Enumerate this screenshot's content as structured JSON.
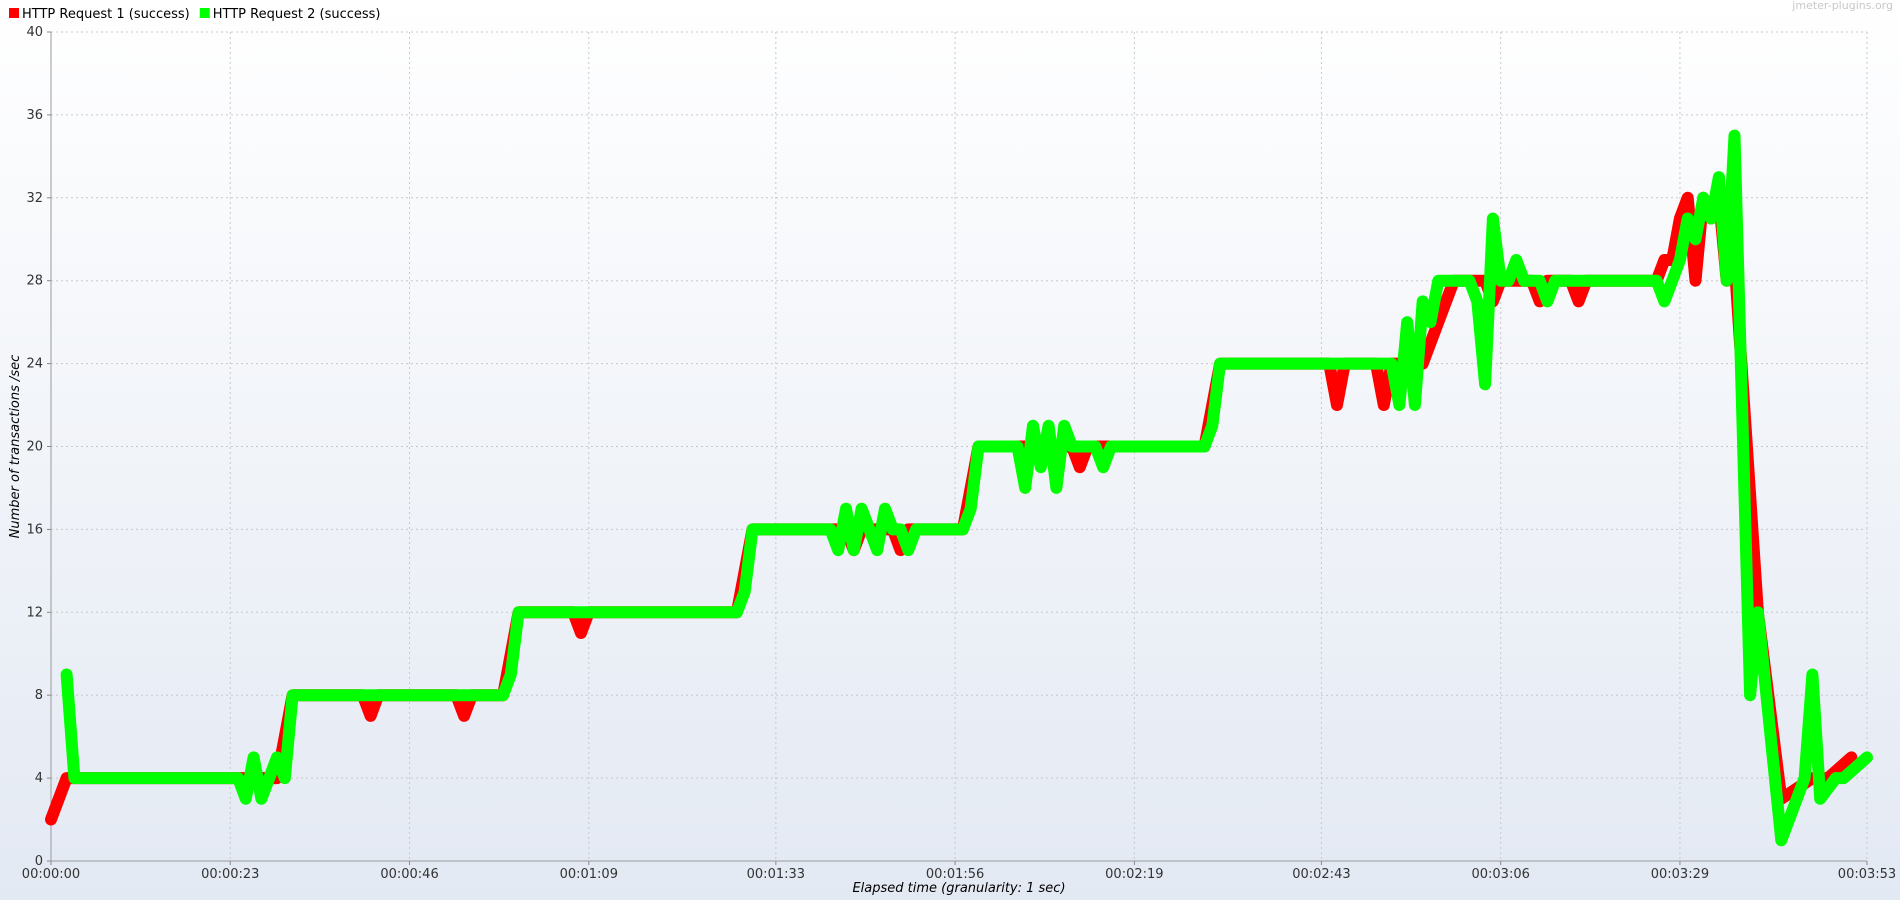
{
  "watermark": "jmeter-plugins.org",
  "chart_data": {
    "type": "line",
    "xlabel": "Elapsed time (granularity: 1 sec)",
    "ylabel": "Number of transactions /sec",
    "ylim": [
      0,
      40
    ],
    "xlim": [
      0,
      233
    ],
    "y_ticks": [
      0,
      4,
      8,
      12,
      16,
      20,
      24,
      28,
      32,
      36,
      40
    ],
    "x_ticks": [
      {
        "t": 0,
        "label": "00:00:00"
      },
      {
        "t": 23,
        "label": "00:00:23"
      },
      {
        "t": 46,
        "label": "00:00:46"
      },
      {
        "t": 69,
        "label": "00:01:09"
      },
      {
        "t": 93,
        "label": "00:01:33"
      },
      {
        "t": 116,
        "label": "00:01:56"
      },
      {
        "t": 139,
        "label": "00:02:19"
      },
      {
        "t": 163,
        "label": "00:02:43"
      },
      {
        "t": 186,
        "label": "00:03:06"
      },
      {
        "t": 209,
        "label": "00:03:29"
      },
      {
        "t": 233,
        "label": "00:03:53"
      }
    ],
    "grid": true,
    "legend_position": "top-left",
    "series": [
      {
        "name": "HTTP Request 1 (success)",
        "color": "#ff0000",
        "points": [
          [
            0,
            2
          ],
          [
            2,
            4
          ],
          [
            29,
            4
          ],
          [
            31,
            8
          ],
          [
            40,
            8
          ],
          [
            41,
            7
          ],
          [
            42,
            8
          ],
          [
            52,
            8
          ],
          [
            53,
            7
          ],
          [
            54,
            8
          ],
          [
            58,
            8
          ],
          [
            60,
            12
          ],
          [
            67,
            12
          ],
          [
            68,
            11
          ],
          [
            69,
            12
          ],
          [
            88,
            12
          ],
          [
            90,
            16
          ],
          [
            102,
            16
          ],
          [
            103,
            15
          ],
          [
            104,
            16
          ],
          [
            108,
            16
          ],
          [
            109,
            15
          ],
          [
            110,
            16
          ],
          [
            117,
            16
          ],
          [
            119,
            20
          ],
          [
            131,
            20
          ],
          [
            132,
            19
          ],
          [
            133,
            20
          ],
          [
            148,
            20
          ],
          [
            150,
            24
          ],
          [
            164,
            24
          ],
          [
            165,
            22
          ],
          [
            166,
            24
          ],
          [
            170,
            24
          ],
          [
            171,
            22
          ],
          [
            172,
            24
          ],
          [
            176,
            24
          ],
          [
            178,
            26
          ],
          [
            180,
            28
          ],
          [
            184,
            28
          ],
          [
            185,
            27
          ],
          [
            186,
            28
          ],
          [
            190,
            28
          ],
          [
            191,
            27
          ],
          [
            192,
            28
          ],
          [
            195,
            28
          ],
          [
            196,
            27
          ],
          [
            197,
            28
          ],
          [
            206,
            28
          ],
          [
            207,
            29
          ],
          [
            208,
            29
          ],
          [
            209,
            31
          ],
          [
            210,
            32
          ],
          [
            211,
            28
          ],
          [
            212,
            32
          ],
          [
            213,
            31
          ],
          [
            214,
            32
          ],
          [
            215,
            28
          ],
          [
            216,
            29
          ],
          [
            219,
            12
          ],
          [
            222,
            3
          ],
          [
            226,
            4
          ],
          [
            228,
            4
          ],
          [
            231,
            5
          ]
        ]
      },
      {
        "name": "HTTP Request 2 (success)",
        "color": "#00ff00",
        "points": [
          [
            0,
            null
          ],
          [
            2,
            9
          ],
          [
            3,
            4
          ],
          [
            24,
            4
          ],
          [
            25,
            3
          ],
          [
            26,
            5
          ],
          [
            27,
            3
          ],
          [
            28,
            4
          ],
          [
            29,
            5
          ],
          [
            30,
            4
          ],
          [
            31,
            8
          ],
          [
            58,
            8
          ],
          [
            59,
            9
          ],
          [
            60,
            12
          ],
          [
            88,
            12
          ],
          [
            89,
            13
          ],
          [
            90,
            16
          ],
          [
            100,
            16
          ],
          [
            101,
            15
          ],
          [
            102,
            17
          ],
          [
            103,
            15
          ],
          [
            104,
            17
          ],
          [
            105,
            16
          ],
          [
            106,
            15
          ],
          [
            107,
            17
          ],
          [
            108,
            16
          ],
          [
            109,
            16
          ],
          [
            110,
            15
          ],
          [
            111,
            16
          ],
          [
            117,
            16
          ],
          [
            118,
            17
          ],
          [
            119,
            20
          ],
          [
            124,
            20
          ],
          [
            125,
            18
          ],
          [
            126,
            21
          ],
          [
            127,
            19
          ],
          [
            128,
            21
          ],
          [
            129,
            18
          ],
          [
            130,
            21
          ],
          [
            131,
            20
          ],
          [
            134,
            20
          ],
          [
            135,
            19
          ],
          [
            136,
            20
          ],
          [
            148,
            20
          ],
          [
            149,
            21
          ],
          [
            150,
            24
          ],
          [
            172,
            24
          ],
          [
            173,
            22
          ],
          [
            174,
            26
          ],
          [
            175,
            22
          ],
          [
            176,
            27
          ],
          [
            177,
            26
          ],
          [
            178,
            28
          ],
          [
            182,
            28
          ],
          [
            183,
            27
          ],
          [
            184,
            23
          ],
          [
            185,
            31
          ],
          [
            186,
            28
          ],
          [
            187,
            28
          ],
          [
            188,
            29
          ],
          [
            189,
            28
          ],
          [
            191,
            28
          ],
          [
            192,
            27
          ],
          [
            193,
            28
          ],
          [
            206,
            28
          ],
          [
            207,
            27
          ],
          [
            208,
            28
          ],
          [
            209,
            29
          ],
          [
            210,
            31
          ],
          [
            211,
            30
          ],
          [
            212,
            32
          ],
          [
            213,
            31
          ],
          [
            214,
            33
          ],
          [
            215,
            28
          ],
          [
            216,
            35
          ],
          [
            218,
            8
          ],
          [
            219,
            12
          ],
          [
            222,
            1
          ],
          [
            225,
            4
          ],
          [
            226,
            9
          ],
          [
            227,
            3
          ],
          [
            229,
            4
          ],
          [
            230,
            4
          ],
          [
            233,
            5
          ]
        ]
      }
    ]
  }
}
